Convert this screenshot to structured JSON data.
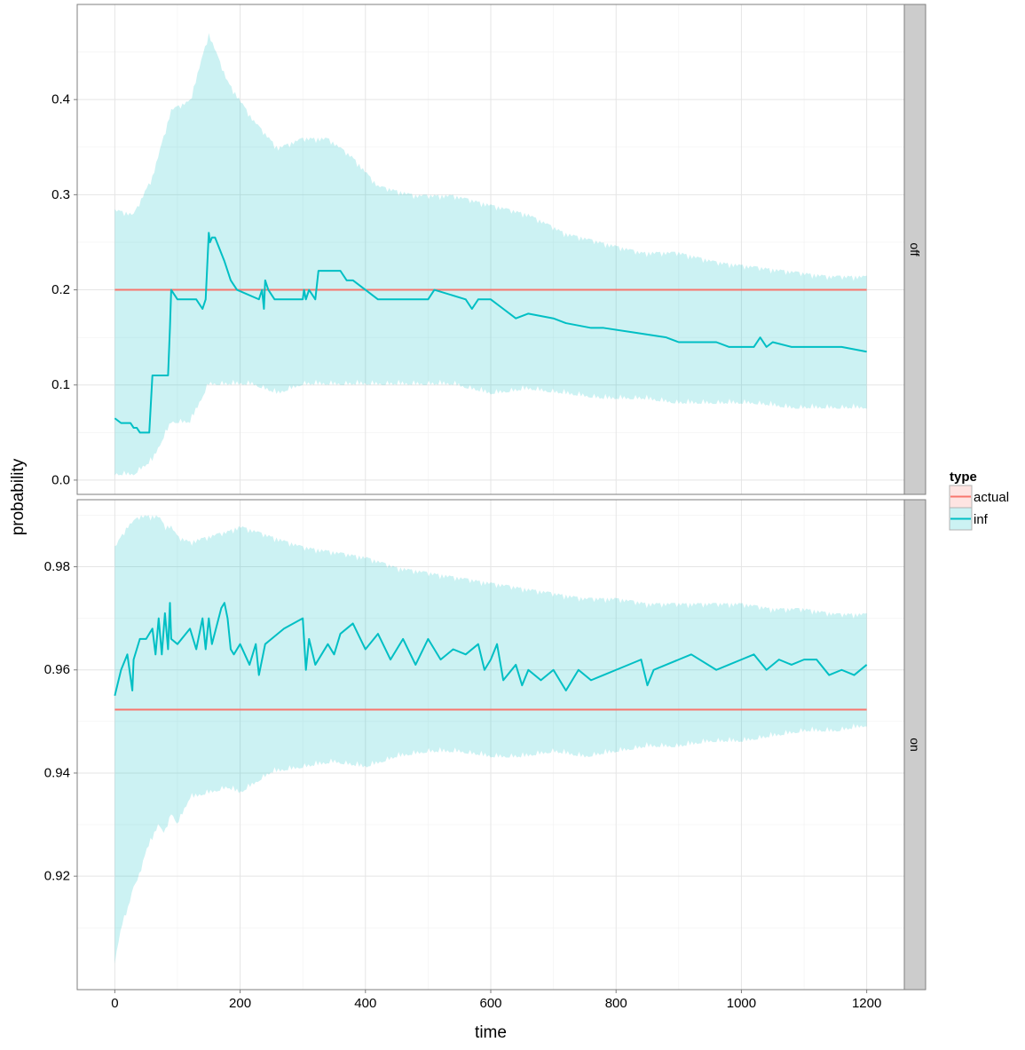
{
  "chart_data": {
    "type": "line",
    "xlabel": "time",
    "ylabel": "probability",
    "x_ticks": [
      0,
      200,
      400,
      600,
      800,
      1000,
      1200
    ],
    "xlim": [
      -60,
      1260
    ],
    "grid": true,
    "legend": {
      "title": "type",
      "position": "right",
      "entries": [
        {
          "label": "actual",
          "color": "#F8766D"
        },
        {
          "label": "inf",
          "color": "#00BFC4"
        }
      ]
    },
    "colors": {
      "actual": "#F8766D",
      "inf": "#00BFC4",
      "ribbon": "#00BFC4",
      "strip": "#cccccc"
    },
    "panels": [
      {
        "strip": "off",
        "ylim": [
          -0.015,
          0.5
        ],
        "y_ticks": [
          0.0,
          0.1,
          0.2,
          0.3,
          0.4
        ],
        "y_tick_labels": [
          "0.0",
          "0.1",
          "0.2",
          "0.3",
          "0.4"
        ],
        "actual": 0.2,
        "inf": {
          "x": [
            0,
            10,
            25,
            30,
            35,
            40,
            45,
            55,
            60,
            85,
            88,
            90,
            100,
            120,
            130,
            140,
            145,
            150,
            152,
            155,
            160,
            175,
            185,
            195,
            230,
            235,
            238,
            240,
            245,
            255,
            300,
            302,
            305,
            310,
            320,
            325,
            360,
            370,
            380,
            400,
            420,
            450,
            470,
            500,
            510,
            560,
            570,
            580,
            590,
            600,
            620,
            640,
            660,
            700,
            720,
            760,
            780,
            830,
            880,
            900,
            960,
            980,
            1020,
            1030,
            1040,
            1050,
            1080,
            1120,
            1140,
            1160,
            1200
          ],
          "y": [
            0.065,
            0.06,
            0.06,
            0.055,
            0.055,
            0.05,
            0.05,
            0.05,
            0.11,
            0.11,
            0.16,
            0.2,
            0.19,
            0.19,
            0.19,
            0.18,
            0.19,
            0.26,
            0.25,
            0.255,
            0.255,
            0.23,
            0.21,
            0.2,
            0.19,
            0.2,
            0.18,
            0.21,
            0.2,
            0.19,
            0.19,
            0.2,
            0.19,
            0.2,
            0.19,
            0.22,
            0.22,
            0.21,
            0.21,
            0.2,
            0.19,
            0.19,
            0.19,
            0.19,
            0.2,
            0.19,
            0.18,
            0.19,
            0.19,
            0.19,
            0.18,
            0.17,
            0.175,
            0.17,
            0.165,
            0.16,
            0.16,
            0.155,
            0.15,
            0.145,
            0.145,
            0.14,
            0.14,
            0.15,
            0.14,
            0.145,
            0.14,
            0.14,
            0.14,
            0.14,
            0.135
          ]
        },
        "ribbon": {
          "x": [
            0,
            30,
            60,
            90,
            120,
            150,
            180,
            220,
            260,
            300,
            340,
            380,
            420,
            480,
            540,
            600,
            660,
            720,
            780,
            840,
            900,
            960,
            1020,
            1080,
            1140,
            1200
          ],
          "lower": [
            0.005,
            0.005,
            0.02,
            0.06,
            0.06,
            0.1,
            0.1,
            0.1,
            0.09,
            0.1,
            0.1,
            0.1,
            0.1,
            0.1,
            0.1,
            0.09,
            0.095,
            0.09,
            0.085,
            0.085,
            0.08,
            0.08,
            0.08,
            0.075,
            0.075,
            0.075
          ],
          "upper": [
            0.285,
            0.28,
            0.32,
            0.39,
            0.4,
            0.47,
            0.42,
            0.38,
            0.35,
            0.36,
            0.36,
            0.34,
            0.31,
            0.3,
            0.3,
            0.29,
            0.28,
            0.26,
            0.25,
            0.24,
            0.24,
            0.23,
            0.225,
            0.22,
            0.215,
            0.215
          ]
        }
      },
      {
        "strip": "on",
        "ylim": [
          0.898,
          0.993
        ],
        "y_ticks": [
          0.92,
          0.94,
          0.96,
          0.98
        ],
        "y_tick_labels": [
          "0.92",
          "0.94",
          "0.96",
          "0.98"
        ],
        "actual": 0.9523,
        "inf": {
          "x": [
            0,
            10,
            20,
            28,
            30,
            40,
            50,
            60,
            65,
            70,
            75,
            80,
            85,
            88,
            90,
            100,
            120,
            130,
            140,
            145,
            150,
            155,
            170,
            175,
            180,
            185,
            190,
            200,
            215,
            225,
            230,
            240,
            250,
            270,
            300,
            305,
            310,
            320,
            340,
            350,
            360,
            380,
            400,
            420,
            440,
            460,
            480,
            500,
            520,
            540,
            560,
            580,
            590,
            600,
            610,
            620,
            640,
            650,
            660,
            680,
            700,
            720,
            740,
            760,
            780,
            800,
            840,
            850,
            860,
            880,
            900,
            920,
            960,
            980,
            1000,
            1020,
            1040,
            1060,
            1080,
            1100,
            1120,
            1140,
            1160,
            1180,
            1200
          ],
          "y": [
            0.955,
            0.96,
            0.963,
            0.956,
            0.962,
            0.966,
            0.966,
            0.968,
            0.963,
            0.97,
            0.963,
            0.971,
            0.964,
            0.973,
            0.966,
            0.965,
            0.968,
            0.964,
            0.97,
            0.964,
            0.97,
            0.965,
            0.972,
            0.973,
            0.97,
            0.964,
            0.963,
            0.965,
            0.961,
            0.965,
            0.959,
            0.965,
            0.966,
            0.968,
            0.97,
            0.96,
            0.966,
            0.961,
            0.965,
            0.963,
            0.967,
            0.969,
            0.964,
            0.967,
            0.962,
            0.966,
            0.961,
            0.966,
            0.962,
            0.964,
            0.963,
            0.965,
            0.96,
            0.962,
            0.965,
            0.958,
            0.961,
            0.957,
            0.96,
            0.958,
            0.96,
            0.956,
            0.96,
            0.958,
            0.959,
            0.96,
            0.962,
            0.957,
            0.96,
            0.961,
            0.962,
            0.963,
            0.96,
            0.961,
            0.962,
            0.963,
            0.96,
            0.962,
            0.961,
            0.962,
            0.962,
            0.959,
            0.96,
            0.959,
            0.961
          ]
        },
        "ribbon": {
          "x": [
            0,
            10,
            20,
            30,
            40,
            50,
            60,
            70,
            80,
            90,
            100,
            120,
            150,
            180,
            200,
            250,
            300,
            350,
            400,
            450,
            500,
            550,
            600,
            650,
            700,
            750,
            800,
            850,
            900,
            950,
            1000,
            1050,
            1100,
            1150,
            1200
          ],
          "lower": [
            0.903,
            0.91,
            0.913,
            0.918,
            0.92,
            0.925,
            0.927,
            0.93,
            0.928,
            0.932,
            0.93,
            0.935,
            0.936,
            0.937,
            0.936,
            0.94,
            0.941,
            0.942,
            0.941,
            0.943,
            0.944,
            0.944,
            0.943,
            0.943,
            0.944,
            0.943,
            0.944,
            0.945,
            0.945,
            0.946,
            0.946,
            0.947,
            0.948,
            0.948,
            0.949
          ],
          "upper": [
            0.984,
            0.986,
            0.988,
            0.989,
            0.99,
            0.99,
            0.99,
            0.99,
            0.988,
            0.988,
            0.986,
            0.985,
            0.986,
            0.987,
            0.988,
            0.986,
            0.984,
            0.983,
            0.982,
            0.98,
            0.979,
            0.978,
            0.977,
            0.976,
            0.975,
            0.974,
            0.974,
            0.973,
            0.973,
            0.973,
            0.973,
            0.972,
            0.972,
            0.971,
            0.971
          ]
        }
      }
    ]
  }
}
